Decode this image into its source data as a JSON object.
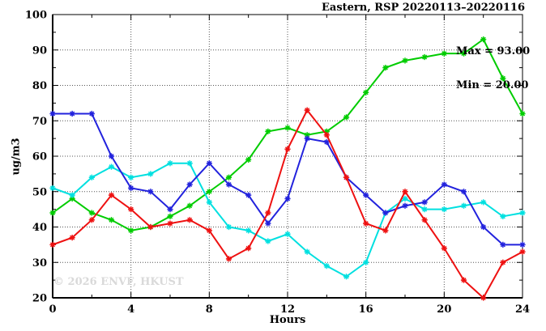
{
  "watermark": "© 2026 ENVF, HKUST",
  "annotations": {
    "max_label": "Max = 93.00",
    "min_label": "Min = 20.00"
  },
  "chart_data": {
    "type": "line",
    "title": "Eastern, RSP 20220113–20220116",
    "xlabel": "Hours",
    "ylabel": "ug/m3",
    "xlim": [
      0,
      24
    ],
    "ylim": [
      20,
      100
    ],
    "grid": true,
    "legend_position": "none",
    "max_value": 93.0,
    "min_value": 20.0,
    "x": [
      0,
      1,
      2,
      3,
      4,
      5,
      6,
      7,
      8,
      9,
      10,
      11,
      12,
      13,
      14,
      15,
      16,
      17,
      18,
      19,
      20,
      21,
      22,
      23,
      24
    ],
    "xticks": {
      "major": [
        0,
        4,
        8,
        12,
        16,
        20,
        24
      ],
      "minor": [
        2,
        6,
        10,
        14,
        18,
        22
      ]
    },
    "yticks": {
      "major": [
        20,
        30,
        40,
        50,
        60,
        70,
        80,
        90,
        100
      ],
      "minor": [
        25,
        35,
        45,
        55,
        65,
        75,
        85,
        95
      ]
    },
    "gridlines": {
      "x": [
        4,
        8,
        12,
        16,
        20
      ],
      "y": [
        30,
        40,
        50,
        60,
        70,
        80,
        90
      ]
    },
    "series": [
      {
        "name": "green-series",
        "color": "#00cc00",
        "values": [
          44,
          48,
          44,
          42,
          39,
          40,
          43,
          46,
          50,
          54,
          59,
          67,
          68,
          66,
          67,
          71,
          78,
          85,
          87,
          88,
          89,
          89,
          93,
          82,
          72
        ]
      },
      {
        "name": "cyan-series",
        "color": "#00e0e0",
        "values": [
          51,
          49,
          54,
          57,
          54,
          55,
          58,
          58,
          47,
          40,
          39,
          36,
          38,
          33,
          29,
          26,
          30,
          44,
          48,
          45,
          45,
          46,
          47,
          43,
          44
        ]
      },
      {
        "name": "blue-series",
        "color": "#2222dd",
        "values": [
          72,
          72,
          72,
          60,
          51,
          50,
          45,
          52,
          58,
          52,
          49,
          41,
          48,
          65,
          64,
          54,
          49,
          44,
          46,
          47,
          52,
          50,
          40,
          35,
          35
        ]
      },
      {
        "name": "red-series",
        "color": "#ee1111",
        "values": [
          35,
          37,
          42,
          49,
          45,
          40,
          41,
          42,
          39,
          31,
          34,
          44,
          62,
          73,
          66,
          54,
          41,
          39,
          50,
          42,
          34,
          25,
          20,
          30,
          33
        ]
      }
    ]
  }
}
